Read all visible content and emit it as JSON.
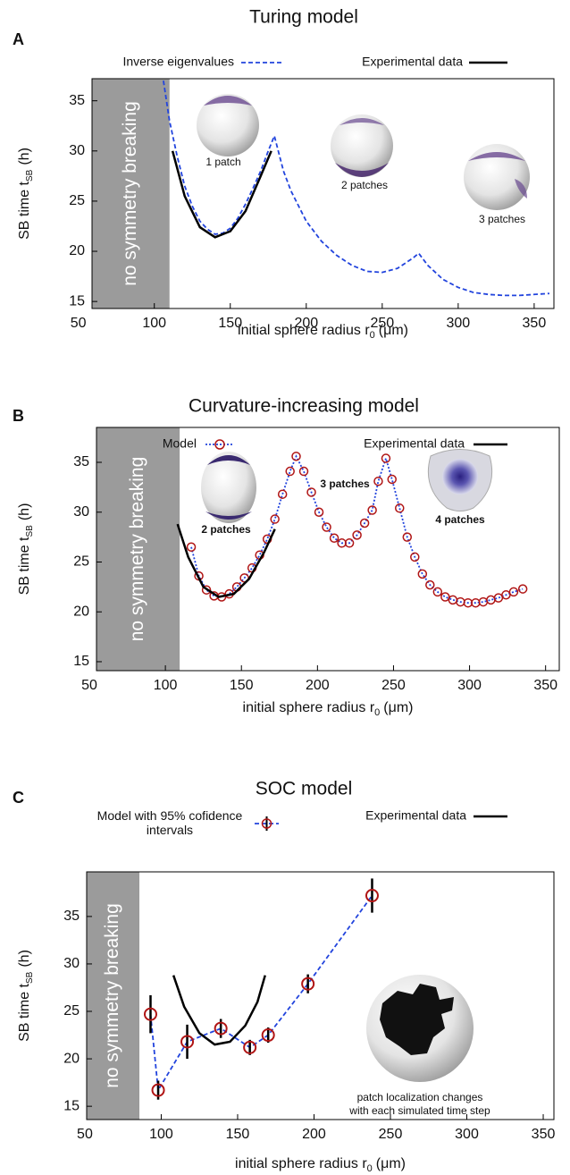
{
  "chart_data": [
    {
      "panel": "A",
      "type": "line",
      "title": "Turing model",
      "xlabel": "initial sphere radius  r",
      "xlabel_sub": "0",
      "xlabel_unit": "(μm)",
      "ylabel": "SB time  t",
      "ylabel_sub": "SB",
      "ylabel_unit": "(h)",
      "xlim": [
        59,
        363
      ],
      "ylim": [
        14.3,
        37.2
      ],
      "xticks": [
        50,
        100,
        150,
        200,
        250,
        300,
        350
      ],
      "yticks": [
        15,
        20,
        25,
        30,
        35
      ],
      "shade_xmax": 110,
      "shade_label": "no symmetry breaking",
      "series": [
        {
          "name": "Inverse eigenvalues",
          "color": "#2244dd",
          "style": "dashed",
          "x": [
            106,
            110,
            115,
            120,
            125,
            130,
            135,
            140,
            145,
            150,
            155,
            160,
            165,
            170,
            175,
            179,
            185,
            190,
            200,
            210,
            220,
            230,
            240,
            250,
            260,
            270,
            274,
            280,
            290,
            300,
            310,
            320,
            330,
            340,
            350,
            360
          ],
          "values": [
            37,
            33,
            29.5,
            26.5,
            24.5,
            23,
            22.2,
            21.7,
            21.8,
            22.3,
            23.3,
            24.7,
            26.3,
            28,
            30,
            31.5,
            28,
            26,
            23,
            21,
            19.6,
            18.6,
            18,
            17.9,
            18.3,
            19.3,
            19.8,
            18.6,
            17.2,
            16.4,
            15.9,
            15.7,
            15.6,
            15.6,
            15.7,
            15.8
          ]
        },
        {
          "name": "Experimental data",
          "color": "#000000",
          "style": "solid",
          "x": [
            112,
            120,
            130,
            140,
            150,
            160,
            170,
            177
          ],
          "values": [
            30,
            25.5,
            22.4,
            21.4,
            22,
            24,
            27.5,
            30
          ]
        }
      ],
      "annotations": [
        "1 patch",
        "2 patches",
        "3 patches"
      ]
    },
    {
      "panel": "B",
      "type": "line",
      "title": "Curvature-increasing model",
      "xlabel": "initial sphere radius  r",
      "xlabel_sub": "0",
      "xlabel_unit": "(μm)",
      "ylabel": "SB time  t",
      "ylabel_sub": "SB",
      "ylabel_unit": "(h)",
      "xlim": [
        54.7,
        359
      ],
      "ylim": [
        14.1,
        38.5
      ],
      "xticks": [
        50,
        100,
        150,
        200,
        250,
        300,
        350
      ],
      "yticks": [
        15,
        20,
        25,
        30,
        35
      ],
      "shade_xmax": 109.4,
      "shade_label": "no symmetry breaking",
      "series": [
        {
          "name": "Model",
          "color": "#2244dd",
          "marker_color": "#b01515",
          "style": "dotted",
          "marker": "circle",
          "x": [
            117,
            122,
            127,
            132,
            137,
            142,
            147,
            152,
            157,
            162,
            167,
            172,
            177,
            182,
            186,
            191,
            196,
            201,
            206,
            211,
            216,
            221,
            226,
            231,
            236,
            240,
            245,
            249,
            254,
            259,
            264,
            269,
            274,
            279,
            284,
            289,
            294,
            299,
            304,
            309,
            314,
            319,
            324,
            329,
            335
          ],
          "values": [
            26.5,
            23.6,
            22.2,
            21.6,
            21.5,
            21.8,
            22.5,
            23.4,
            24.4,
            25.7,
            27.3,
            29.3,
            31.8,
            34.1,
            35.6,
            34.1,
            32,
            30,
            28.5,
            27.4,
            26.9,
            26.9,
            27.7,
            28.9,
            30.2,
            33.1,
            35.4,
            33.3,
            30.4,
            27.5,
            25.5,
            23.8,
            22.7,
            22,
            21.5,
            21.2,
            21,
            20.9,
            20.9,
            21,
            21.2,
            21.4,
            21.7,
            22,
            22.3
          ]
        },
        {
          "name": "Experimental data",
          "color": "#000000",
          "style": "solid",
          "x": [
            108,
            115,
            125,
            135,
            145,
            155,
            165,
            172
          ],
          "values": [
            28.8,
            25.5,
            22.5,
            21.5,
            21.8,
            23.3,
            26,
            28.3
          ]
        }
      ],
      "annotations": [
        "2 patches",
        "3 patches",
        "4 patches"
      ]
    },
    {
      "panel": "C",
      "type": "line",
      "title": "SOC model",
      "xlabel": "initial sphere radius  r",
      "xlabel_sub": "0",
      "xlabel_unit": "(μm)",
      "ylabel": "SB time  t",
      "ylabel_sub": "SB",
      "ylabel_unit": "(h)",
      "xlim": [
        51.2,
        357
      ],
      "ylim": [
        13.6,
        39.7
      ],
      "xticks": [
        50,
        100,
        150,
        200,
        250,
        300,
        350
      ],
      "yticks": [
        15,
        20,
        25,
        30,
        35
      ],
      "shade_xmax": 85.7,
      "shade_label": "no symmetry breaking",
      "series": [
        {
          "name": "Model with 95% cofidence intervals",
          "color": "#2244dd",
          "marker_color": "#b01515",
          "style": "dashed",
          "marker": "circle",
          "x": [
            93,
            98,
            117,
            139,
            158,
            170,
            196,
            238
          ],
          "values": [
            24.7,
            16.7,
            21.8,
            23.2,
            21.2,
            22.5,
            27.9,
            37.2
          ],
          "errors": [
            2,
            1,
            1.8,
            1,
            0.8,
            0.8,
            1,
            1.8
          ]
        },
        {
          "name": "Experimental data",
          "color": "#000000",
          "style": "solid",
          "x": [
            108,
            115,
            125,
            135,
            145,
            155,
            163,
            168
          ],
          "values": [
            28.8,
            25.5,
            22.7,
            21.5,
            21.8,
            23.5,
            26,
            28.8
          ]
        }
      ],
      "annotations": [
        "patch localization changes",
        "with each simulated time step"
      ]
    }
  ]
}
